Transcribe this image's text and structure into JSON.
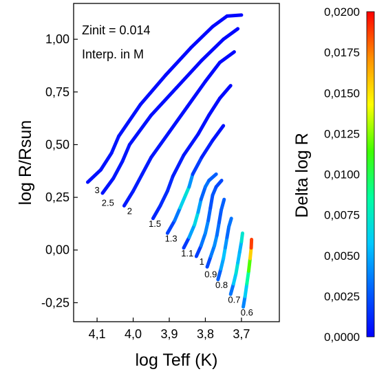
{
  "chart_data": {
    "type": "scatter",
    "annotations": [
      "Zinit = 0.014",
      "Interp. in M"
    ],
    "xlabel": "log Teff (K)",
    "ylabel": "log R/Rsun",
    "xlim": [
      4.165,
      3.595
    ],
    "ylim": [
      -0.34,
      1.17
    ],
    "x_ticks": [
      4.1,
      4.0,
      3.9,
      3.8,
      3.7
    ],
    "x_tick_labels": [
      "4,1",
      "4,0",
      "3,9",
      "3,8",
      "3,7"
    ],
    "y_ticks": [
      1.0,
      0.75,
      0.5,
      0.25,
      0.0,
      -0.25
    ],
    "y_tick_labels": [
      "1,00",
      "0,75",
      "0,50",
      "0,25",
      "0,00",
      "-0,25"
    ],
    "colorbar": {
      "label": "Delta log R",
      "range": [
        0.0,
        0.02
      ],
      "ticks": [
        0.02,
        0.0175,
        0.015,
        0.0125,
        0.01,
        0.0075,
        0.005,
        0.0025,
        0.0
      ],
      "tick_labels": [
        "0,0200",
        "0,0175",
        "0,0150",
        "0,0125",
        "0,0100",
        "0,0075",
        "0,0050",
        "0,0025",
        "0,0000"
      ],
      "colormap": [
        "#0000ff",
        "#0060ff",
        "#00c8ff",
        "#00ffa0",
        "#40ff00",
        "#ffff00",
        "#ff9000",
        "#ff0000"
      ]
    },
    "mass_labels": [
      {
        "text": "3",
        "x": 4.1,
        "y": 0.27
      },
      {
        "text": "2.5",
        "x": 4.07,
        "y": 0.21
      },
      {
        "text": "2",
        "x": 4.01,
        "y": 0.17
      },
      {
        "text": "1.5",
        "x": 3.94,
        "y": 0.11
      },
      {
        "text": "1.3",
        "x": 3.895,
        "y": 0.04
      },
      {
        "text": "1.1",
        "x": 3.85,
        "y": -0.03
      },
      {
        "text": "1",
        "x": 3.81,
        "y": -0.07
      },
      {
        "text": "0.9",
        "x": 3.785,
        "y": -0.13
      },
      {
        "text": "0.8",
        "x": 3.755,
        "y": -0.18
      },
      {
        "text": "0.7",
        "x": 3.72,
        "y": -0.25
      },
      {
        "text": "0.6",
        "x": 3.685,
        "y": -0.31
      }
    ],
    "tracks": [
      {
        "mass": 3.0,
        "points": [
          [
            4.126,
            0.322,
            0.0004
          ],
          [
            4.09,
            0.38,
            0.0005
          ],
          [
            4.06,
            0.46,
            0.0006
          ],
          [
            4.04,
            0.54,
            0.0006
          ],
          [
            3.98,
            0.69,
            0.0004
          ],
          [
            3.91,
            0.83,
            0.0003
          ],
          [
            3.84,
            0.96,
            0.0002
          ],
          [
            3.78,
            1.06,
            0.0002
          ],
          [
            3.74,
            1.11,
            0.0002
          ],
          [
            3.7,
            1.115,
            0.0002
          ]
        ]
      },
      {
        "mass": 2.5,
        "points": [
          [
            4.085,
            0.27,
            0.0005
          ],
          [
            4.055,
            0.34,
            0.0006
          ],
          [
            4.03,
            0.42,
            0.0007
          ],
          [
            4.01,
            0.5,
            0.0006
          ],
          [
            3.95,
            0.64,
            0.0004
          ],
          [
            3.88,
            0.77,
            0.0003
          ],
          [
            3.81,
            0.9,
            0.0002
          ],
          [
            3.75,
            1.0,
            0.0002
          ],
          [
            3.71,
            1.05,
            0.0002
          ]
        ]
      },
      {
        "mass": 2.0,
        "points": [
          [
            4.025,
            0.21,
            0.0007
          ],
          [
            4.0,
            0.28,
            0.0008
          ],
          [
            3.975,
            0.36,
            0.0009
          ],
          [
            3.95,
            0.44,
            0.0007
          ],
          [
            3.9,
            0.56,
            0.0005
          ],
          [
            3.85,
            0.68,
            0.0004
          ],
          [
            3.8,
            0.8,
            0.0003
          ],
          [
            3.76,
            0.89,
            0.0002
          ],
          [
            3.72,
            0.94,
            0.0002
          ]
        ]
      },
      {
        "mass": 1.5,
        "points": [
          [
            3.945,
            0.15,
            0.001
          ],
          [
            3.925,
            0.21,
            0.0012
          ],
          [
            3.905,
            0.28,
            0.0014
          ],
          [
            3.89,
            0.35,
            0.0011
          ],
          [
            3.86,
            0.45,
            0.0007
          ],
          [
            3.82,
            0.55,
            0.0005
          ],
          [
            3.79,
            0.64,
            0.0004
          ],
          [
            3.76,
            0.72,
            0.0003
          ],
          [
            3.73,
            0.78,
            0.0002
          ]
        ]
      },
      {
        "mass": 1.3,
        "points": [
          [
            3.905,
            0.08,
            0.0014
          ],
          [
            3.885,
            0.14,
            0.0026
          ],
          [
            3.87,
            0.2,
            0.0045
          ],
          [
            3.855,
            0.26,
            0.008
          ],
          [
            3.845,
            0.3,
            0.006
          ],
          [
            3.835,
            0.36,
            0.0025
          ],
          [
            3.81,
            0.44,
            0.0012
          ],
          [
            3.78,
            0.52,
            0.0006
          ],
          [
            3.75,
            0.59,
            0.0004
          ]
        ]
      },
      {
        "mass": 1.1,
        "points": [
          [
            3.86,
            0.01,
            0.0012
          ],
          [
            3.845,
            0.06,
            0.0022
          ],
          [
            3.83,
            0.12,
            0.0072
          ],
          [
            3.82,
            0.18,
            0.0058
          ],
          [
            3.812,
            0.24,
            0.0035
          ],
          [
            3.8,
            0.3,
            0.0024
          ],
          [
            3.79,
            0.33,
            0.0045
          ],
          [
            3.77,
            0.36,
            0.0012
          ]
        ]
      },
      {
        "mass": 1.0,
        "points": [
          [
            3.825,
            -0.03,
            0.0012
          ],
          [
            3.812,
            0.02,
            0.0025
          ],
          [
            3.8,
            0.08,
            0.0045
          ],
          [
            3.792,
            0.14,
            0.0034
          ],
          [
            3.786,
            0.2,
            0.0026
          ],
          [
            3.78,
            0.26,
            0.0022
          ],
          [
            3.77,
            0.3,
            0.0028
          ],
          [
            3.755,
            0.33,
            0.0015
          ]
        ]
      },
      {
        "mass": 0.9,
        "points": [
          [
            3.795,
            -0.08,
            0.0016
          ],
          [
            3.785,
            -0.03,
            0.0028
          ],
          [
            3.775,
            0.02,
            0.0045
          ],
          [
            3.768,
            0.07,
            0.0038
          ],
          [
            3.762,
            0.13,
            0.0028
          ],
          [
            3.756,
            0.19,
            0.0025
          ],
          [
            3.748,
            0.24,
            0.0032
          ]
        ]
      },
      {
        "mass": 0.8,
        "points": [
          [
            3.765,
            -0.14,
            0.0022
          ],
          [
            3.757,
            -0.09,
            0.0035
          ],
          [
            3.75,
            -0.04,
            0.006
          ],
          [
            3.745,
            0.01,
            0.0052
          ],
          [
            3.74,
            0.06,
            0.0034
          ],
          [
            3.735,
            0.11,
            0.0028
          ],
          [
            3.728,
            0.15,
            0.004
          ]
        ]
      },
      {
        "mass": 0.7,
        "points": [
          [
            3.73,
            -0.21,
            0.0026
          ],
          [
            3.722,
            -0.16,
            0.0042
          ],
          [
            3.715,
            -0.11,
            0.0075
          ],
          [
            3.71,
            -0.06,
            0.0064
          ],
          [
            3.705,
            -0.01,
            0.0044
          ],
          [
            3.7,
            0.04,
            0.0058
          ],
          [
            3.697,
            0.08,
            0.0085
          ]
        ]
      },
      {
        "mass": 0.6,
        "points": [
          [
            3.695,
            -0.27,
            0.003
          ],
          [
            3.69,
            -0.22,
            0.0048
          ],
          [
            3.685,
            -0.16,
            0.0072
          ],
          [
            3.68,
            -0.1,
            0.0098
          ],
          [
            3.676,
            -0.04,
            0.0135
          ],
          [
            3.673,
            0.01,
            0.0175
          ],
          [
            3.672,
            0.05,
            0.02
          ]
        ]
      }
    ]
  }
}
